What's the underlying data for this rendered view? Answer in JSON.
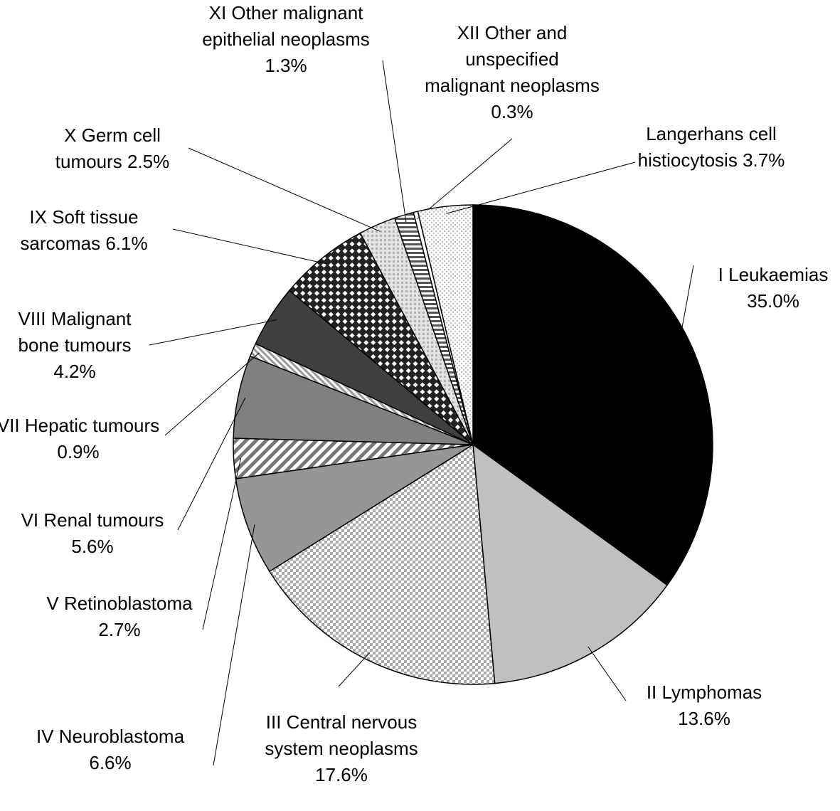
{
  "chart_data": {
    "type": "pie",
    "categories": [
      "I Leukaemias",
      "II Lymphomas",
      "III Central nervous system neoplasms",
      "IV Neuroblastoma",
      "V Retinoblastoma",
      "VI Renal tumours",
      "VII Hepatic tumours",
      "VIII Malignant bone tumours",
      "IX Soft tissue sarcomas",
      "X Germ cell tumours",
      "XI Other malignant epithelial neoplasms",
      "XII Other and unspecified malignant neoplasms",
      "Langerhans cell histiocytosis"
    ],
    "values": [
      35.0,
      13.6,
      17.6,
      6.6,
      2.7,
      5.6,
      0.9,
      4.2,
      6.1,
      2.5,
      1.3,
      0.3,
      3.7
    ],
    "value_labels": [
      "35.0%",
      "13.6%",
      "17.6%",
      "6.6%",
      "2.7%",
      "5.6%",
      "0.9%",
      "4.2%",
      "6.1%",
      "2.5%",
      "1.3%",
      "0.3%",
      "3.7%"
    ],
    "colors": [
      "#000000",
      "#c0c0c0",
      "url(#p-check)",
      "#969696",
      "url(#p-stripe)",
      "#808080",
      "url(#p-fine)",
      "#404040",
      "url(#p-diamond)",
      "url(#p-dots)",
      "url(#p-hstripe)",
      "#ffffff",
      "url(#p-light)"
    ]
  }
}
